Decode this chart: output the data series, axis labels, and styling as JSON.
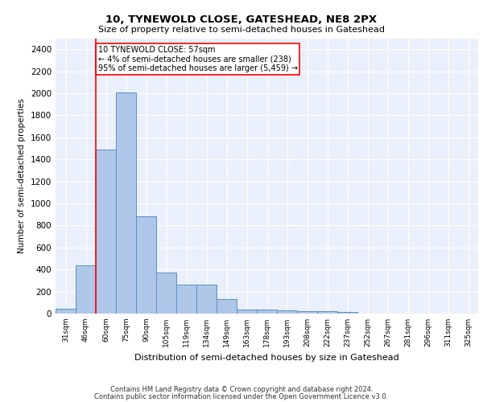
{
  "title1": "10, TYNEWOLD CLOSE, GATESHEAD, NE8 2PX",
  "title2": "Size of property relative to semi-detached houses in Gateshead",
  "xlabel": "Distribution of semi-detached houses by size in Gateshead",
  "ylabel": "Number of semi-detached properties",
  "categories": [
    "31sqm",
    "46sqm",
    "60sqm",
    "75sqm",
    "90sqm",
    "105sqm",
    "119sqm",
    "134sqm",
    "149sqm",
    "163sqm",
    "178sqm",
    "193sqm",
    "208sqm",
    "222sqm",
    "237sqm",
    "252sqm",
    "267sqm",
    "281sqm",
    "296sqm",
    "311sqm",
    "325sqm"
  ],
  "values": [
    45,
    440,
    1490,
    2010,
    880,
    375,
    260,
    260,
    130,
    40,
    40,
    30,
    20,
    20,
    15,
    0,
    0,
    0,
    0,
    0,
    0
  ],
  "bar_color": "#aec6e8",
  "bar_edge_color": "#5a8fc2",
  "red_line_x": 1.5,
  "annotation_text": "10 TYNEWOLD CLOSE: 57sqm\n← 4% of semi-detached houses are smaller (238)\n95% of semi-detached houses are larger (5,459) →",
  "ylim": [
    0,
    2500
  ],
  "yticks": [
    0,
    200,
    400,
    600,
    800,
    1000,
    1200,
    1400,
    1600,
    1800,
    2000,
    2200,
    2400
  ],
  "footer1": "Contains HM Land Registry data © Crown copyright and database right 2024.",
  "footer2": "Contains public sector information licensed under the Open Government Licence v3.0.",
  "plot_bg_color": "#eaf0fb"
}
